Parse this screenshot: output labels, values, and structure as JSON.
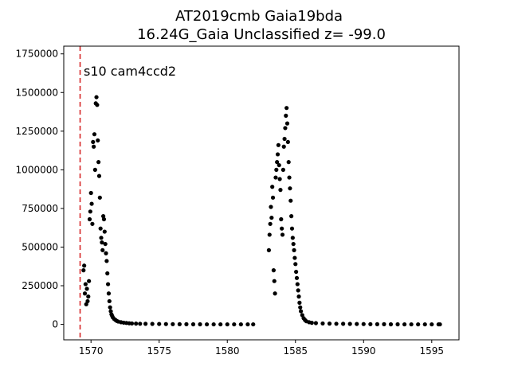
{
  "chart_data": {
    "type": "scatter",
    "title": "AT2019cmb  Gaia19bda",
    "subtitle": "16.24G_Gaia Unclassified z= -99.0",
    "xlabel": "",
    "ylabel": "",
    "xlim": [
      1568.0,
      1597.0
    ],
    "ylim": [
      -100000,
      1800000
    ],
    "x_ticks": [
      1570,
      1575,
      1580,
      1585,
      1590,
      1595
    ],
    "y_ticks": [
      0,
      250000,
      500000,
      750000,
      1000000,
      1250000,
      1500000,
      1750000
    ],
    "x_tick_labels": [
      "1570",
      "1575",
      "1580",
      "1585",
      "1590",
      "1595"
    ],
    "y_tick_labels": [
      "0",
      "250000",
      "500000",
      "750000",
      "1000000",
      "1250000",
      "1500000",
      "1750000"
    ],
    "annotation": "s10 cam4ccd2",
    "vline": {
      "x": 1569.2,
      "color": "#d62728",
      "style": "dashed"
    },
    "marker_color": "#000000",
    "grid": false,
    "series": [
      {
        "points": [
          [
            1569.45,
            350000
          ],
          [
            1569.5,
            380000
          ],
          [
            1569.55,
            200000
          ],
          [
            1569.6,
            260000
          ],
          [
            1569.65,
            130000
          ],
          [
            1569.7,
            230000
          ],
          [
            1569.75,
            150000
          ],
          [
            1569.8,
            180000
          ],
          [
            1569.85,
            280000
          ],
          [
            1569.9,
            680000
          ],
          [
            1569.95,
            730000
          ],
          [
            1570.0,
            850000
          ],
          [
            1570.05,
            780000
          ],
          [
            1570.1,
            650000
          ],
          [
            1570.15,
            1180000
          ],
          [
            1570.2,
            1150000
          ],
          [
            1570.25,
            1230000
          ],
          [
            1570.3,
            1000000
          ],
          [
            1570.35,
            1430000
          ],
          [
            1570.4,
            1470000
          ],
          [
            1570.45,
            1420000
          ],
          [
            1570.5,
            1190000
          ],
          [
            1570.55,
            1050000
          ],
          [
            1570.6,
            960000
          ],
          [
            1570.65,
            820000
          ],
          [
            1570.7,
            620000
          ],
          [
            1570.75,
            560000
          ],
          [
            1570.8,
            530000
          ],
          [
            1570.85,
            480000
          ],
          [
            1570.9,
            700000
          ],
          [
            1570.95,
            680000
          ],
          [
            1571.0,
            600000
          ],
          [
            1571.05,
            520000
          ],
          [
            1571.1,
            460000
          ],
          [
            1571.15,
            410000
          ],
          [
            1571.2,
            330000
          ],
          [
            1571.25,
            260000
          ],
          [
            1571.3,
            200000
          ],
          [
            1571.35,
            150000
          ],
          [
            1571.4,
            110000
          ],
          [
            1571.45,
            85000
          ],
          [
            1571.5,
            65000
          ],
          [
            1571.55,
            55000
          ],
          [
            1571.6,
            45000
          ],
          [
            1571.7,
            35000
          ],
          [
            1571.8,
            28000
          ],
          [
            1571.9,
            22000
          ],
          [
            1572.0,
            18000
          ],
          [
            1572.2,
            14000
          ],
          [
            1572.4,
            11000
          ],
          [
            1572.6,
            9000
          ],
          [
            1572.8,
            7000
          ],
          [
            1573.0,
            6000
          ],
          [
            1573.3,
            5000
          ],
          [
            1573.6,
            4000
          ],
          [
            1574.0,
            3500
          ],
          [
            1574.5,
            3000
          ],
          [
            1575.0,
            2500
          ],
          [
            1575.5,
            2000
          ],
          [
            1576.0,
            1500
          ],
          [
            1576.5,
            1000
          ],
          [
            1577.0,
            1000
          ],
          [
            1577.5,
            500
          ],
          [
            1578.0,
            500
          ],
          [
            1578.5,
            0
          ],
          [
            1579.0,
            0
          ],
          [
            1579.5,
            0
          ],
          [
            1580.0,
            0
          ],
          [
            1580.5,
            0
          ],
          [
            1581.0,
            0
          ],
          [
            1581.5,
            0
          ],
          [
            1581.9,
            0
          ],
          [
            1583.05,
            480000
          ],
          [
            1583.1,
            580000
          ],
          [
            1583.15,
            650000
          ],
          [
            1583.2,
            760000
          ],
          [
            1583.25,
            690000
          ],
          [
            1583.3,
            890000
          ],
          [
            1583.35,
            820000
          ],
          [
            1583.4,
            350000
          ],
          [
            1583.45,
            280000
          ],
          [
            1583.5,
            200000
          ],
          [
            1583.55,
            950000
          ],
          [
            1583.6,
            1000000
          ],
          [
            1583.65,
            1050000
          ],
          [
            1583.7,
            1100000
          ],
          [
            1583.75,
            1160000
          ],
          [
            1583.8,
            1030000
          ],
          [
            1583.85,
            940000
          ],
          [
            1583.9,
            870000
          ],
          [
            1583.95,
            680000
          ],
          [
            1584.0,
            620000
          ],
          [
            1584.05,
            580000
          ],
          [
            1584.1,
            1000000
          ],
          [
            1584.15,
            1150000
          ],
          [
            1584.2,
            1200000
          ],
          [
            1584.25,
            1270000
          ],
          [
            1584.3,
            1350000
          ],
          [
            1584.35,
            1400000
          ],
          [
            1584.4,
            1300000
          ],
          [
            1584.45,
            1180000
          ],
          [
            1584.5,
            1050000
          ],
          [
            1584.55,
            950000
          ],
          [
            1584.6,
            880000
          ],
          [
            1584.65,
            800000
          ],
          [
            1584.7,
            700000
          ],
          [
            1584.75,
            620000
          ],
          [
            1584.8,
            560000
          ],
          [
            1584.85,
            520000
          ],
          [
            1584.9,
            480000
          ],
          [
            1584.95,
            430000
          ],
          [
            1585.0,
            390000
          ],
          [
            1585.05,
            340000
          ],
          [
            1585.1,
            300000
          ],
          [
            1585.15,
            260000
          ],
          [
            1585.2,
            220000
          ],
          [
            1585.25,
            180000
          ],
          [
            1585.3,
            140000
          ],
          [
            1585.35,
            110000
          ],
          [
            1585.4,
            85000
          ],
          [
            1585.5,
            60000
          ],
          [
            1585.6,
            40000
          ],
          [
            1585.7,
            28000
          ],
          [
            1585.8,
            20000
          ],
          [
            1586.0,
            14000
          ],
          [
            1586.2,
            10000
          ],
          [
            1586.5,
            8000
          ],
          [
            1587.0,
            6000
          ],
          [
            1587.5,
            5000
          ],
          [
            1588.0,
            4000
          ],
          [
            1588.5,
            3500
          ],
          [
            1589.0,
            3000
          ],
          [
            1589.5,
            2500
          ],
          [
            1590.0,
            2000
          ],
          [
            1590.5,
            1500
          ],
          [
            1591.0,
            1000
          ],
          [
            1591.5,
            1000
          ],
          [
            1592.0,
            500
          ],
          [
            1592.5,
            500
          ],
          [
            1593.0,
            0
          ],
          [
            1593.5,
            0
          ],
          [
            1594.0,
            0
          ],
          [
            1594.5,
            0
          ],
          [
            1595.0,
            0
          ],
          [
            1595.5,
            0
          ],
          [
            1595.6,
            0
          ]
        ]
      }
    ]
  }
}
